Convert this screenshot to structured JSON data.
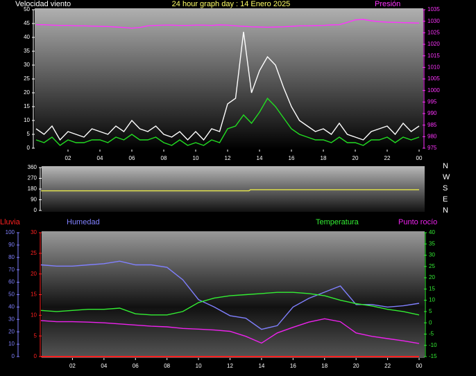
{
  "chart_data": [
    {
      "type": "line",
      "title": "24 hour graph day : 14 Enero 2025",
      "x": [
        0,
        0.5,
        1,
        1.5,
        2,
        2.5,
        3,
        3.5,
        4,
        4.5,
        5,
        5.5,
        6,
        6.5,
        7,
        7.5,
        8,
        8.5,
        9,
        9.5,
        10,
        10.5,
        11,
        11.5,
        12,
        12.5,
        13,
        13.5,
        14,
        14.5,
        15,
        15.5,
        16,
        16.5,
        17,
        17.5,
        18,
        18.5,
        19,
        19.5,
        20,
        20.5,
        21,
        21.5,
        22,
        22.5,
        23,
        23.5,
        24
      ],
      "xlim": [
        0,
        24
      ],
      "xticks": [
        {
          "value": 2,
          "label": "02"
        },
        {
          "value": 4,
          "label": "04"
        },
        {
          "value": 6,
          "label": "06"
        },
        {
          "value": 8,
          "label": "08"
        },
        {
          "value": 10,
          "label": "10"
        },
        12,
        14,
        16,
        18,
        20,
        22,
        {
          "value": 24,
          "label": "00"
        }
      ],
      "ylim": [
        0,
        50
      ],
      "yticks": [
        0,
        5,
        10,
        15,
        20,
        25,
        30,
        35,
        40,
        45,
        50
      ],
      "y2lim": [
        975,
        1035
      ],
      "y2ticks": [
        975,
        980,
        985,
        990,
        995,
        1000,
        1005,
        1010,
        1015,
        1020,
        1025,
        1030,
        1035
      ],
      "series": [
        {
          "name": "Velocidad viento",
          "color": "#ffffff",
          "values": [
            7,
            5,
            8,
            3,
            6,
            5,
            4,
            7,
            6,
            5,
            8,
            6,
            10,
            7,
            6,
            8,
            5,
            4,
            6,
            3,
            6,
            3,
            7,
            6,
            16,
            18,
            42,
            20,
            28,
            33,
            30,
            22,
            15,
            10,
            8,
            6,
            7,
            5,
            9,
            5,
            4,
            3,
            6,
            7,
            8,
            5,
            9,
            6,
            8
          ]
        },
        {
          "color": "#22dd22",
          "values": [
            3,
            2,
            4,
            1,
            3,
            2,
            2,
            3,
            3,
            2,
            4,
            3,
            5,
            3,
            3,
            4,
            2,
            1,
            3,
            1,
            2,
            1,
            3,
            2,
            7,
            8,
            12,
            9,
            13,
            18,
            15,
            11,
            7,
            5,
            4,
            3,
            3,
            2,
            4,
            2,
            2,
            1,
            3,
            3,
            4,
            2,
            4,
            3,
            4
          ]
        },
        {
          "name": "Presión",
          "color": "#ff33ff",
          "axis": "y2",
          "values": [
            1028.5,
            1028.5,
            1028.3,
            1028.2,
            1028.2,
            1028,
            1028,
            1027.9,
            1027.8,
            1027.7,
            1027.5,
            1027.3,
            1027,
            1027.3,
            1028,
            1028.2,
            1028.3,
            1028.3,
            1028.2,
            1028.2,
            1028.3,
            1028.3,
            1028.2,
            1028.4,
            1028.3,
            1028,
            1027.8,
            1027.6,
            1027.5,
            1027.4,
            1027.5,
            1027.6,
            1027.8,
            1028,
            1028,
            1028.1,
            1028.2,
            1028.4,
            1028.5,
            1029.5,
            1030.6,
            1030.8,
            1030.2,
            1029.8,
            1029.6,
            1029.5,
            1029.4,
            1029.3,
            1029.2
          ]
        }
      ]
    },
    {
      "type": "line",
      "x": [
        0,
        13.2,
        13.3,
        24
      ],
      "xlim": [
        0,
        24
      ],
      "ylim": [
        0,
        360
      ],
      "yticks": [
        0,
        90,
        180,
        270,
        360
      ],
      "tick_color": "#ffffff",
      "compass": [
        "N",
        "W",
        "S",
        "E",
        "N"
      ],
      "series": [
        {
          "color": "#e8e84a",
          "values": [
            165,
            165,
            175,
            175
          ]
        }
      ]
    },
    {
      "type": "line",
      "x": [
        0,
        1,
        2,
        3,
        4,
        5,
        6,
        7,
        8,
        9,
        10,
        11,
        12,
        13,
        14,
        15,
        16,
        17,
        18,
        19,
        20,
        21,
        22,
        23,
        24
      ],
      "xlim": [
        0,
        24
      ],
      "xticks": [
        {
          "value": 2,
          "label": "02"
        },
        {
          "value": 4,
          "label": "04"
        },
        {
          "value": 6,
          "label": "06"
        },
        {
          "value": 8,
          "label": "08"
        },
        {
          "value": 10,
          "label": "10"
        },
        12,
        14,
        16,
        18,
        20,
        22,
        {
          "value": 24,
          "label": "00"
        }
      ],
      "ylim": [
        0,
        30
      ],
      "yticks": [
        0,
        5,
        10,
        15,
        20,
        25,
        30
      ],
      "y3lim": [
        0,
        100
      ],
      "y3ticks": [
        0,
        10,
        20,
        30,
        40,
        50,
        60,
        70,
        80,
        90,
        100
      ],
      "y2lim": [
        -15,
        40
      ],
      "y2ticks": [
        -15,
        -10,
        -5,
        0,
        5,
        10,
        15,
        20,
        25,
        30,
        35,
        40
      ],
      "series": [
        {
          "name": "Lluvia",
          "color": "#ff2020",
          "values": [
            0,
            0,
            0,
            0,
            0,
            0,
            0,
            0,
            0,
            0,
            0,
            0,
            0,
            0,
            0,
            0,
            0,
            0,
            0,
            0,
            0,
            0,
            0,
            0,
            0
          ]
        },
        {
          "name": "Humedad",
          "color": "#8080ff",
          "axis": "y3",
          "values": [
            74,
            73,
            73,
            74,
            75,
            77,
            74,
            74,
            72,
            62,
            46,
            40,
            33,
            31,
            22,
            25,
            40,
            47,
            52,
            57,
            42,
            42,
            40,
            41,
            43
          ]
        },
        {
          "name": "Temperatura",
          "color": "#33ee33",
          "axis": "y2",
          "values": [
            5.5,
            5,
            5.5,
            6,
            6,
            6.5,
            4,
            3.5,
            3.5,
            5,
            9,
            11,
            12,
            12.5,
            13,
            13.5,
            13.5,
            13,
            12,
            10,
            8.5,
            7.5,
            6,
            5,
            3.5
          ]
        },
        {
          "name": "Punto rocío",
          "color": "#ee22ee",
          "axis": "y2",
          "values": [
            1,
            0.5,
            0.5,
            0.3,
            0,
            -0.5,
            -1,
            -1.5,
            -1.8,
            -2.5,
            -2.8,
            -3.2,
            -3.8,
            -6,
            -9,
            -4.5,
            -2,
            0.3,
            1.8,
            0.5,
            -4.5,
            -6,
            -7,
            -8,
            -9.2
          ]
        }
      ]
    }
  ]
}
